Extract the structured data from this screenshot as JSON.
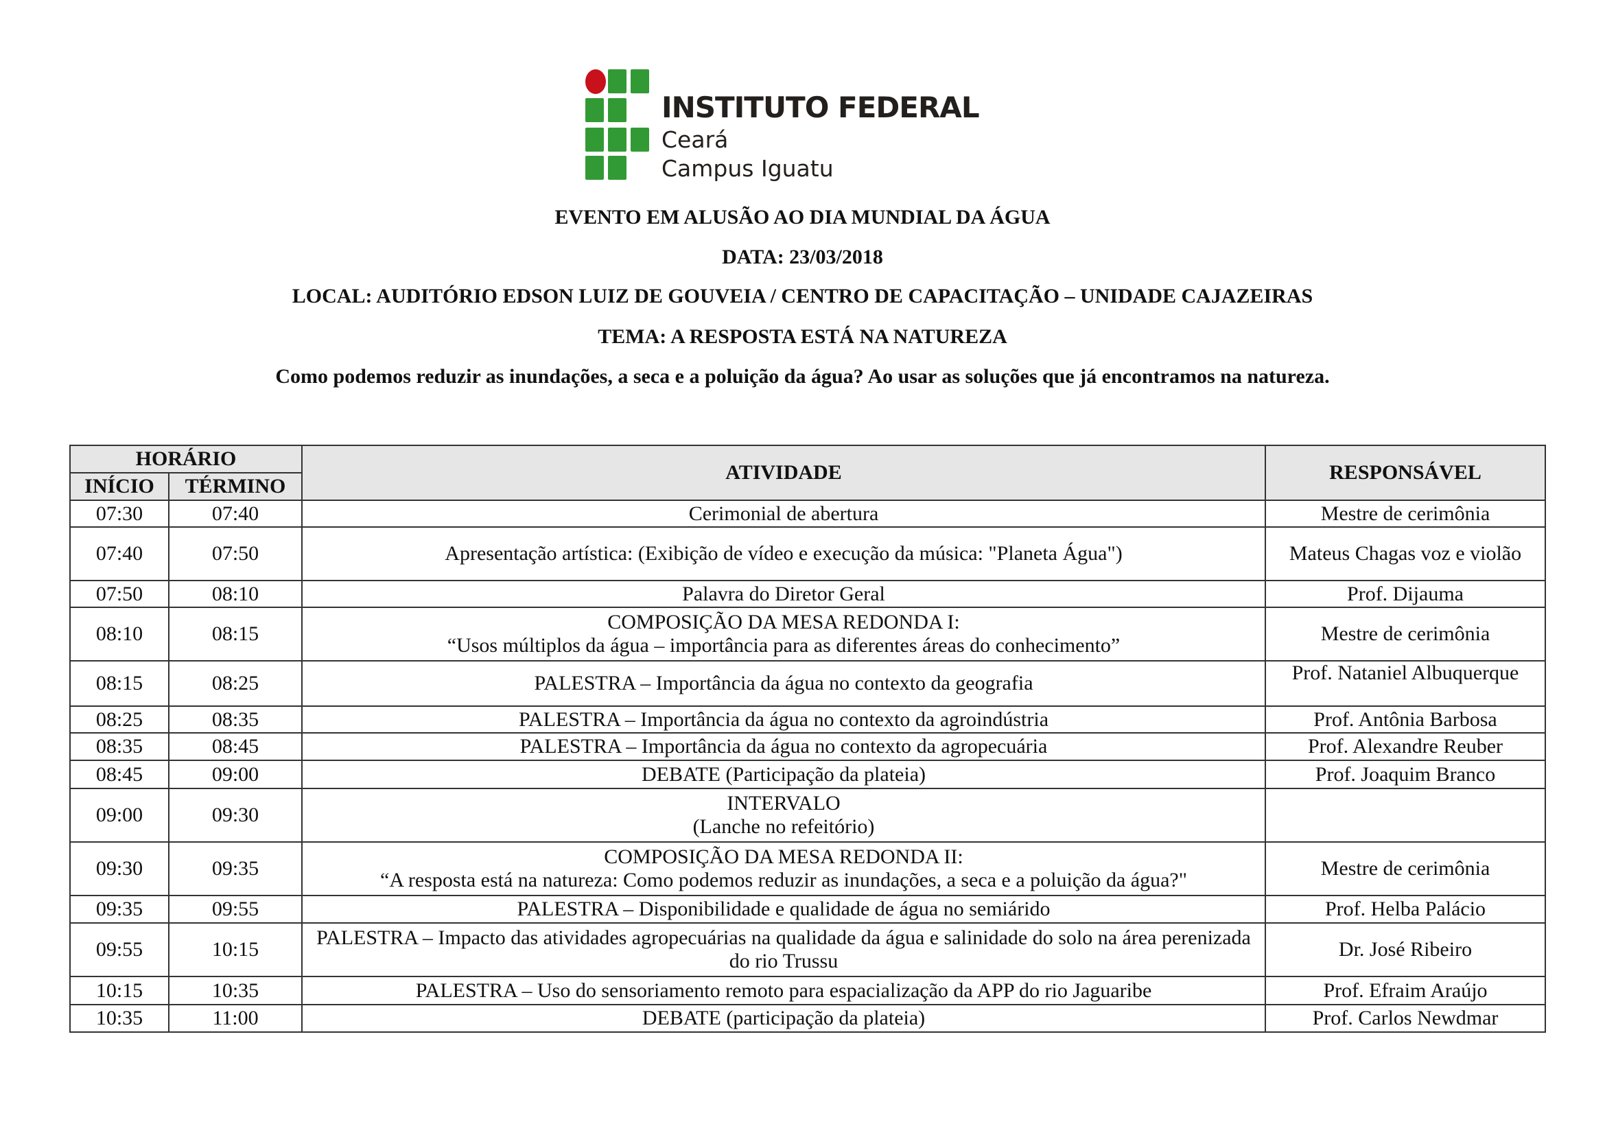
{
  "logo": {
    "title": "INSTITUTO FEDERAL",
    "line2": "Ceará",
    "line3": "Campus Iguatu",
    "colors": {
      "green": "#329a34",
      "red": "#c8111b"
    }
  },
  "header": {
    "event": "EVENTO EM ALUSÃO AO DIA MUNDIAL DA ÁGUA",
    "date": "DATA: 23/03/2018",
    "location": "LOCAL: AUDITÓRIO EDSON LUIZ DE GOUVEIA / CENTRO DE CAPACITAÇÃO – UNIDADE CAJAZEIRAS",
    "theme": "TEMA: A RESPOSTA ESTÁ NA NATUREZA",
    "question": "Como podemos reduzir as inundações, a seca e a poluição da água? Ao usar as soluções que já encontramos na natureza."
  },
  "table": {
    "headers": {
      "horario": "HORÁRIO",
      "inicio": "INÍCIO",
      "termino": "TÉRMINO",
      "atividade": "ATIVIDADE",
      "responsavel": "RESPONSÁVEL"
    },
    "rows": [
      {
        "inicio": "07:30",
        "termino": "07:40",
        "atividade": [
          "Cerimonial de abertura"
        ],
        "responsavel": "Mestre de cerimônia"
      },
      {
        "inicio": "07:40",
        "termino": "07:50",
        "atividade": [
          "Apresentação artística: (Exibição de vídeo e execução da música: \"Planeta Água\")"
        ],
        "responsavel": "Mateus Chagas voz e violão"
      },
      {
        "inicio": "07:50",
        "termino": "08:10",
        "atividade": [
          "Palavra do Diretor Geral"
        ],
        "responsavel": "Prof. Dijauma"
      },
      {
        "inicio": "08:10",
        "termino": "08:15",
        "atividade": [
          "COMPOSIÇÃO DA MESA REDONDA I:",
          "“Usos múltiplos da água – importância para as diferentes áreas do conhecimento”"
        ],
        "responsavel": "Mestre de cerimônia"
      },
      {
        "inicio": "08:15",
        "termino": "08:25",
        "atividade": [
          "PALESTRA – Importância da água no contexto da geografia"
        ],
        "responsavel": "Prof. Nataniel Albuquerque"
      },
      {
        "inicio": "08:25",
        "termino": "08:35",
        "atividade": [
          "PALESTRA – Importância da água no contexto da agroindústria"
        ],
        "responsavel": "Prof. Antônia Barbosa"
      },
      {
        "inicio": "08:35",
        "termino": "08:45",
        "atividade": [
          "PALESTRA – Importância da água no contexto da agropecuária"
        ],
        "responsavel": "Prof. Alexandre Reuber"
      },
      {
        "inicio": "08:45",
        "termino": "09:00",
        "atividade": [
          "DEBATE (Participação da plateia)"
        ],
        "responsavel": "Prof. Joaquim Branco"
      },
      {
        "inicio": "09:00",
        "termino": "09:30",
        "atividade": [
          "INTERVALO",
          "(Lanche no refeitório)"
        ],
        "responsavel": ""
      },
      {
        "inicio": "09:30",
        "termino": "09:35",
        "atividade": [
          "COMPOSIÇÃO DA MESA REDONDA II:",
          "“A resposta está na natureza: Como podemos reduzir as inundações, a seca e a poluição da água?\""
        ],
        "responsavel": "Mestre de cerimônia"
      },
      {
        "inicio": "09:35",
        "termino": "09:55",
        "atividade": [
          "PALESTRA – Disponibilidade e qualidade de água no semiárido"
        ],
        "responsavel": "Prof. Helba Palácio"
      },
      {
        "inicio": "09:55",
        "termino": "10:15",
        "atividade": [
          "PALESTRA – Impacto das atividades agropecuárias na qualidade da água e salinidade do solo na área perenizada do rio Trussu"
        ],
        "responsavel": "Dr. José Ribeiro"
      },
      {
        "inicio": "10:15",
        "termino": "10:35",
        "atividade": [
          "PALESTRA – Uso do sensoriamento remoto para espacialização da APP do rio Jaguaribe"
        ],
        "responsavel": "Prof. Efraim Araújo"
      },
      {
        "inicio": "10:35",
        "termino": "11:00",
        "atividade": [
          "DEBATE (participação da plateia)"
        ],
        "responsavel": "Prof. Carlos Newdmar"
      }
    ]
  }
}
